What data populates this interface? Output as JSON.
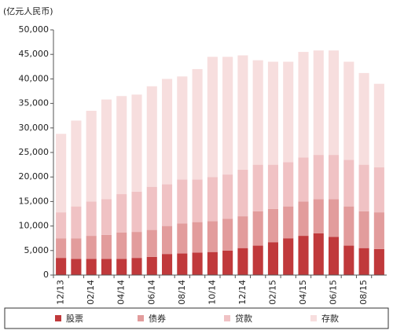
{
  "chart_data": {
    "type": "stacked_bar",
    "unit_label": "(亿元人民币)",
    "categories": [
      "12/13",
      null,
      "02/14",
      null,
      "04/14",
      null,
      "06/14",
      null,
      "08/14",
      null,
      "10/14",
      null,
      "12/14",
      null,
      "02/15",
      null,
      "04/15",
      null,
      "06/15",
      null,
      "08/15",
      null
    ],
    "series": [
      {
        "name": "股票",
        "color": "#c0393b",
        "values": [
          3500,
          3300,
          3300,
          3300,
          3300,
          3500,
          3700,
          4300,
          4400,
          4600,
          4700,
          5000,
          5500,
          6000,
          6700,
          7500,
          8000,
          8500,
          7800,
          6000,
          5500,
          5300
        ]
      },
      {
        "name": "债券",
        "color": "#e29c9c",
        "values": [
          4000,
          4200,
          4700,
          4900,
          5400,
          5300,
          5500,
          5700,
          6100,
          6200,
          6300,
          6500,
          6500,
          7000,
          6800,
          6500,
          7000,
          7000,
          7700,
          8000,
          7500,
          7500
        ]
      },
      {
        "name": "贷款",
        "color": "#f0c2c4",
        "values": [
          5300,
          6500,
          7000,
          7300,
          7800,
          8200,
          8800,
          8500,
          9000,
          8700,
          9000,
          9000,
          9500,
          9500,
          9000,
          9000,
          9000,
          9000,
          9000,
          9500,
          9500,
          9200
        ]
      },
      {
        "name": "存款",
        "color": "#f7dede",
        "values": [
          16000,
          17500,
          18500,
          20300,
          20000,
          19800,
          20500,
          21500,
          21000,
          22500,
          24500,
          24000,
          23300,
          21300,
          21000,
          20500,
          21500,
          21300,
          21300,
          20000,
          18700,
          17000
        ]
      }
    ],
    "ylim": [
      0,
      50000
    ],
    "yticks": [
      0,
      {
        "value": 5000,
        "label": "5,000"
      },
      {
        "value": 10000,
        "label": "10,000"
      },
      {
        "value": 15000,
        "label": "15,000"
      },
      {
        "value": 20000,
        "label": "20,000"
      },
      {
        "value": 25000,
        "label": "25,000"
      },
      {
        "value": 30000,
        "label": "30,000"
      },
      {
        "value": 35000,
        "label": "35,000"
      },
      {
        "value": 40000,
        "label": "40,000"
      },
      {
        "value": 45000,
        "label": "45,000"
      },
      {
        "value": 50000,
        "label": "50,000"
      }
    ],
    "grid": false
  }
}
